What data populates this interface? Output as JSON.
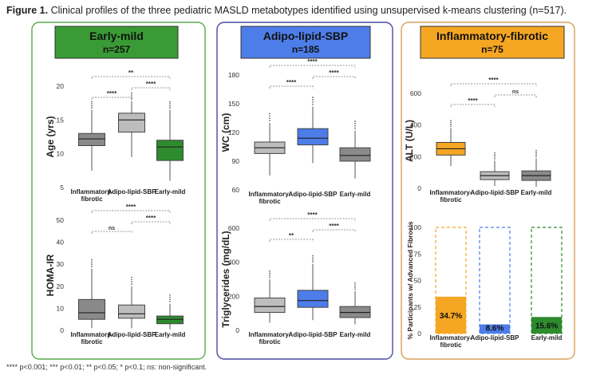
{
  "figure": {
    "label": "Figure 1.",
    "title": "Clinical profiles of the three pediatric MASLD metabotypes identified using unsupervised k-means clustering (n=517).",
    "footnote": "**** p<0.001; *** p<0.01; ** p<0.05; * p<0.1; ns: non-significant."
  },
  "groups": [
    {
      "name": "Early-mild",
      "n": "n=257",
      "color": "#3a9a35",
      "border": "#5aaa4a"
    },
    {
      "name": "Adipo-lipid-SBP",
      "n": "n=185",
      "color": "#4d7de8",
      "border": "#4a4aa0"
    },
    {
      "name": "Inflammatory-fibrotic",
      "n": "n=75",
      "color": "#f5a623",
      "border": "#d9a05a"
    }
  ],
  "chart_data": [
    {
      "type": "box",
      "title": "",
      "ylabel": "Age (yrs)",
      "ylim": [
        5,
        20
      ],
      "yticks": [
        "5",
        "10",
        "15",
        "20"
      ],
      "categories": [
        "Inflammatory-fibrotic",
        "Adipo-lipid-SBP",
        "Early-mild"
      ],
      "category_labels": [
        [
          "Inflammatory-",
          "fibrotic"
        ],
        [
          "Adipo-lipid-SBP"
        ],
        [
          "Early-mild"
        ]
      ],
      "boxes": [
        {
          "whisker_low": 7.5,
          "q1": 11.2,
          "median": 12.2,
          "q3": 13.0,
          "whisker_high": 16.5,
          "color": "#8a8a8a"
        },
        {
          "whisker_low": 9.5,
          "q1": 13.2,
          "median": 15.0,
          "q3": 16.0,
          "whisker_high": 17.8,
          "color": "#bdbdbd"
        },
        {
          "whisker_low": 6.0,
          "q1": 9.0,
          "median": 11.0,
          "q3": 12.0,
          "whisker_high": 16.5,
          "color": "#2e8b2e"
        }
      ],
      "brackets": [
        {
          "from": 0,
          "to": 2,
          "label": "**"
        },
        {
          "from": 0,
          "to": 1,
          "label": "****"
        },
        {
          "from": 1,
          "to": 2,
          "label": "****"
        }
      ]
    },
    {
      "type": "box",
      "ylabel": "HOMA-IR",
      "ylim": [
        0,
        50
      ],
      "yticks": [
        "0",
        "10",
        "20",
        "30",
        "40",
        "50"
      ],
      "categories": [
        "Inflammatory-fibrotic",
        "Adipo-lipid-SBP",
        "Early-mild"
      ],
      "category_labels": [
        [
          "Inflammatory-",
          "fibrotic"
        ],
        [
          "Adipo-lipid-SBP"
        ],
        [
          "Early-mild"
        ]
      ],
      "boxes": [
        {
          "whisker_low": 1,
          "q1": 5,
          "median": 8,
          "q3": 14,
          "whisker_high": 28,
          "color": "#8a8a8a"
        },
        {
          "whisker_low": 1,
          "q1": 5.5,
          "median": 7.5,
          "q3": 11.5,
          "whisker_high": 20,
          "color": "#bdbdbd"
        },
        {
          "whisker_low": 0.5,
          "q1": 3,
          "median": 5,
          "q3": 6.5,
          "whisker_high": 12,
          "color": "#2e8b2e"
        }
      ],
      "brackets": [
        {
          "from": 0,
          "to": 2,
          "label": "****"
        },
        {
          "from": 0,
          "to": 1,
          "label": "ns"
        },
        {
          "from": 1,
          "to": 2,
          "label": "****"
        }
      ]
    },
    {
      "type": "box",
      "ylabel": "WC (cm)",
      "ylim": [
        60,
        180
      ],
      "yticks": [
        "60",
        "90",
        "120",
        "150",
        "180"
      ],
      "categories": [
        "Inflammatory-fibrotic",
        "Adipo-lipid-SBP",
        "Early-mild"
      ],
      "category_labels": [
        [
          "Inflammatory-",
          "fibrotic"
        ],
        [
          "Adipo-lipid-SBP"
        ],
        [
          "Early-mild"
        ]
      ],
      "boxes": [
        {
          "whisker_low": 75,
          "q1": 98,
          "median": 104,
          "q3": 110,
          "whisker_high": 130,
          "color": "#bdbdbd"
        },
        {
          "whisker_low": 88,
          "q1": 107,
          "median": 114,
          "q3": 124,
          "whisker_high": 147,
          "color": "#4d7de8"
        },
        {
          "whisker_low": 72,
          "q1": 90,
          "median": 96,
          "q3": 104,
          "whisker_high": 122,
          "color": "#8a8a8a"
        }
      ],
      "brackets": [
        {
          "from": 0,
          "to": 2,
          "label": "****"
        },
        {
          "from": 0,
          "to": 1,
          "label": "****"
        },
        {
          "from": 1,
          "to": 2,
          "label": "****"
        }
      ]
    },
    {
      "type": "box",
      "ylabel": "Triglycerides (mg/dL)",
      "ylim": [
        0,
        600
      ],
      "yticks": [
        "0",
        "200",
        "400",
        "600"
      ],
      "categories": [
        "Inflammatory-fibrotic",
        "Adipo-lipid-SBP",
        "Early-mild"
      ],
      "category_labels": [
        [
          "Inflammatory-",
          "fibrotic"
        ],
        [
          "Adipo-lipid-SBP"
        ],
        [
          "Early-mild"
        ]
      ],
      "boxes": [
        {
          "whisker_low": 45,
          "q1": 105,
          "median": 140,
          "q3": 190,
          "whisker_high": 300,
          "color": "#bdbdbd"
        },
        {
          "whisker_low": 60,
          "q1": 135,
          "median": 175,
          "q3": 235,
          "whisker_high": 390,
          "color": "#4d7de8"
        },
        {
          "whisker_low": 35,
          "q1": 75,
          "median": 105,
          "q3": 140,
          "whisker_high": 230,
          "color": "#8a8a8a"
        }
      ],
      "brackets": [
        {
          "from": 0,
          "to": 2,
          "label": "****"
        },
        {
          "from": 0,
          "to": 1,
          "label": "**"
        },
        {
          "from": 1,
          "to": 2,
          "label": "****"
        }
      ]
    },
    {
      "type": "box",
      "ylabel": "ALT (U/L)",
      "ylim": [
        0,
        600
      ],
      "yticks": [
        "0",
        "200",
        "400",
        "600"
      ],
      "categories": [
        "Inflammatory-fibrotic",
        "Adipo-lipid-SBP",
        "Early-mild"
      ],
      "category_labels": [
        [
          "Inflammatory-",
          "fibrotic"
        ],
        [
          "Adipo-lipid-SBP"
        ],
        [
          "Early-mild"
        ]
      ],
      "boxes": [
        {
          "whisker_low": 140,
          "q1": 210,
          "median": 250,
          "q3": 290,
          "whisker_high": 380,
          "color": "#f5a623"
        },
        {
          "whisker_low": 15,
          "q1": 55,
          "median": 80,
          "q3": 105,
          "whisker_high": 175,
          "color": "#bdbdbd"
        },
        {
          "whisker_low": 10,
          "q1": 50,
          "median": 80,
          "q3": 110,
          "whisker_high": 190,
          "color": "#8a8a8a"
        }
      ],
      "brackets": [
        {
          "from": 0,
          "to": 2,
          "label": "****"
        },
        {
          "from": 0,
          "to": 1,
          "label": "****"
        },
        {
          "from": 1,
          "to": 2,
          "label": "ns"
        }
      ]
    },
    {
      "type": "bar",
      "ylabel": "% Participants w/ Advanced Fibrosis",
      "ylim": [
        0,
        100
      ],
      "yticks": [
        "0",
        "25",
        "50",
        "75",
        "100"
      ],
      "categories": [
        "Inflammatory-fibrotic",
        "Adipo-lipid-SBP",
        "Early-mild"
      ],
      "category_labels": [
        [
          "Inflammatory-",
          "fibrotic"
        ],
        [
          "Adipo-lipid-SBP"
        ],
        [
          "Early-mild"
        ]
      ],
      "values": [
        34.7,
        8.6,
        15.6
      ],
      "value_labels": [
        "34.7%",
        "8.6%",
        "15.6%"
      ],
      "colors": [
        "#f5a623",
        "#4d7de8",
        "#2e8b2e"
      ]
    }
  ]
}
